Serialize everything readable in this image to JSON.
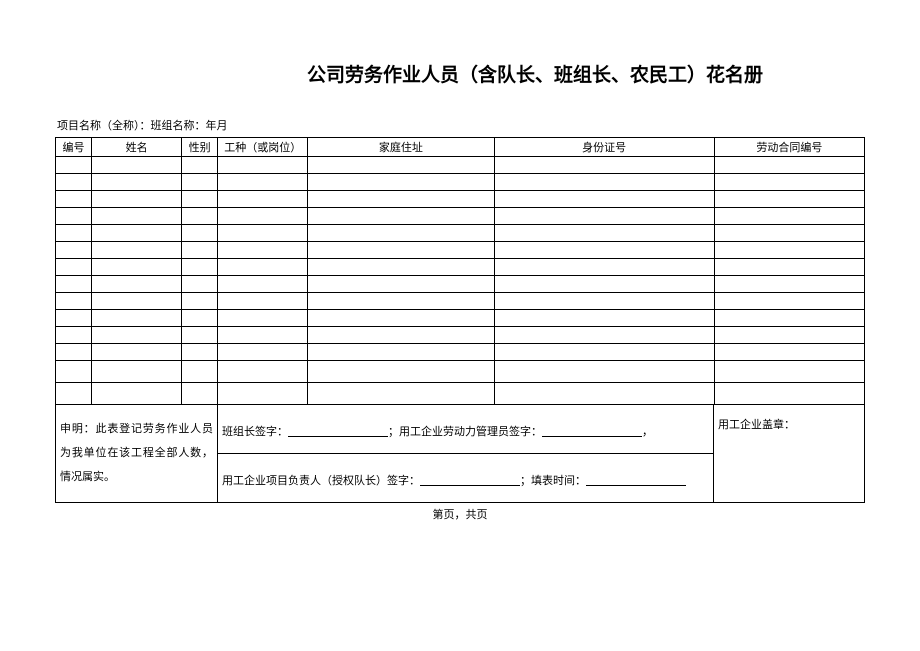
{
  "document": {
    "title": "公司劳务作业人员（含队长、班组长、农民工）花名册",
    "subtitle": "项目名称（全称）：班组名称：年月",
    "page_info": "第页，共页"
  },
  "table": {
    "headers": {
      "num": "编号",
      "name": "姓名",
      "gender": "性别",
      "job": "工种（或岗位）",
      "address": "家庭住址",
      "id": "身份证号",
      "contract": "劳动合同编号"
    },
    "row_count": 14
  },
  "footer": {
    "declaration": "申明：此表登记劳务作业人员为我单位在该工程全部人数，情况属实。",
    "sig_line1_part1": "班组长签字：",
    "sig_line1_part2": "；用工企业劳动力管理员签字：",
    "sig_line1_part3": "，",
    "sig_line2_part1": "用工企业项目负责人（授权队长）签字：",
    "sig_line2_part2": "；填表时间：",
    "stamp": "用工企业盖章："
  },
  "style": {
    "border_color": "#000000",
    "background_color": "#ffffff",
    "title_fontsize": 19,
    "body_fontsize": 11,
    "header_row_height": 19,
    "data_row_height": 17,
    "tall_row_height": 22
  }
}
